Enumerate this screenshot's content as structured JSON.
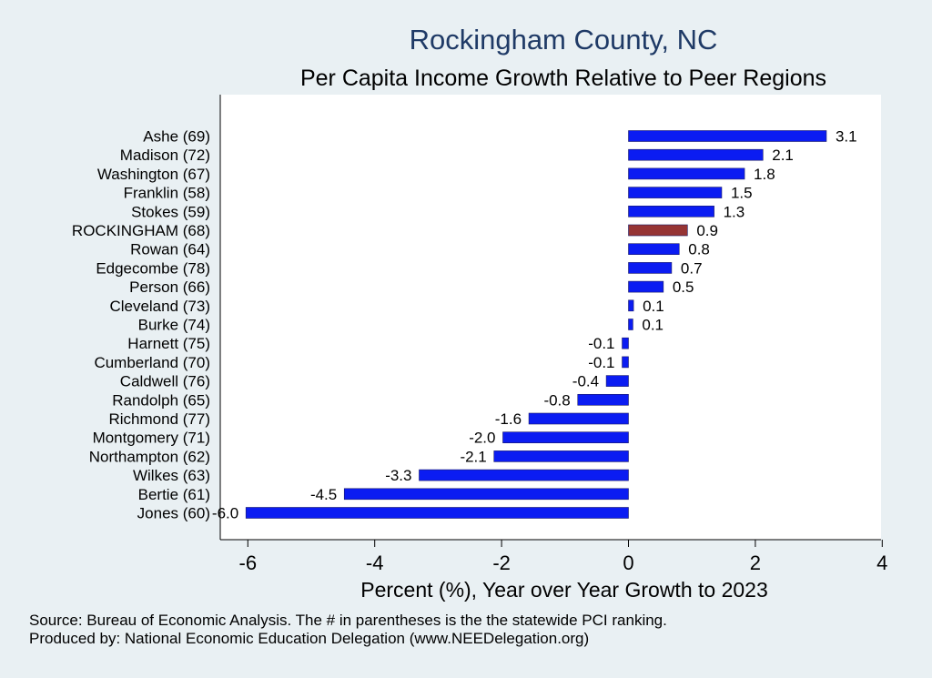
{
  "chart_data": {
    "type": "bar",
    "orientation": "horizontal",
    "title": "Rockingham County, NC",
    "subtitle": "Per Capita Income Growth Relative to Peer Regions",
    "xlabel": "Percent (%), Year over Year Growth to 2023",
    "ylabel": "",
    "xlim": [
      -6.3,
      4.0
    ],
    "xticks": [
      "-6",
      "-4",
      "-2",
      "0",
      "2",
      "4"
    ],
    "xtick_values": [
      -6,
      -4,
      -2,
      0,
      2,
      4
    ],
    "grid": false,
    "categories": [
      "Ashe (69)",
      "Madison (72)",
      "Washington (67)",
      "Franklin (58)",
      "Stokes (59)",
      "ROCKINGHAM (68)",
      "Rowan (64)",
      "Edgecombe (78)",
      "Person (66)",
      "Cleveland (73)",
      "Burke (74)",
      "Harnett (75)",
      "Cumberland (70)",
      "Caldwell (76)",
      "Randolph (65)",
      "Richmond (77)",
      "Montgomery (71)",
      "Northampton (62)",
      "Wilkes (63)",
      "Bertie (61)",
      "Jones (60)"
    ],
    "values": [
      3.12,
      2.12,
      1.83,
      1.47,
      1.35,
      0.93,
      0.8,
      0.68,
      0.55,
      0.08,
      0.07,
      -0.1,
      -0.1,
      -0.35,
      -0.8,
      -1.57,
      -1.98,
      -2.12,
      -3.3,
      -4.48,
      -6.03
    ],
    "value_labels": [
      "3.1",
      "2.1",
      "1.8",
      "1.5",
      "1.3",
      "0.9",
      "0.8",
      "0.7",
      "0.5",
      "0.1",
      "0.1",
      "-0.1",
      "-0.1",
      "-0.4",
      "-0.8",
      "-1.6",
      "-2.0",
      "-2.1",
      "-3.3",
      "-4.5",
      "-6.0"
    ],
    "highlight": "ROCKINGHAM (68)",
    "colors": {
      "bar": "#0b1cf2",
      "highlight": "#963434",
      "bar_edge": "#1a1a66",
      "title": "#1f3a66"
    }
  },
  "notes": {
    "source": "Source: Bureau of Economic Analysis. The # in parentheses is the the statewide PCI ranking.",
    "produced_by": "Produced by: National Economic Education Delegation (www.NEEDelegation.org)"
  }
}
